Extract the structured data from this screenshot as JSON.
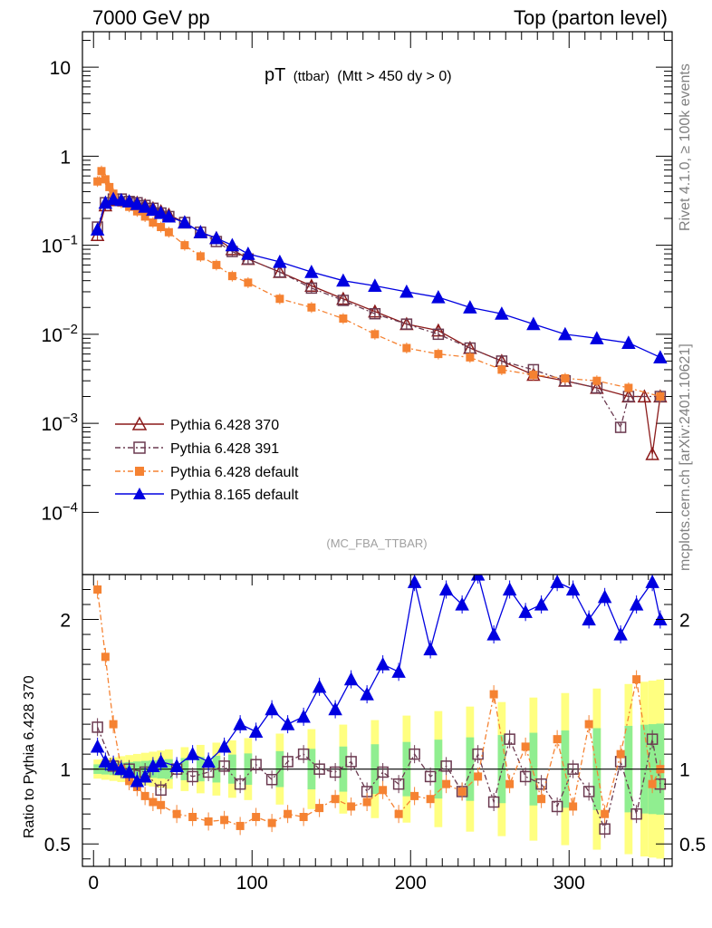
{
  "header": {
    "left": "7000 GeV pp",
    "right": "Top (parton level)"
  },
  "plot_title": {
    "main": "pT",
    "sub1": "(ttbar)",
    "sub2": "(Mtt > 450 dy > 0)"
  },
  "side_labels": {
    "rivet": "Rivet 4.1.0, ≥ 100k events",
    "mcplots": "mcplots.cern.ch [arXiv:2401.10621]"
  },
  "analysis_tag": "(MC_FBA_TTBAR)",
  "ratio_ylabel": "Ratio to Pythia 6.428 370",
  "chart_data": [
    {
      "type": "scatter",
      "panel": "main",
      "title": "pT (ttbar) (Mtt > 450 dy > 0)",
      "yscale": "log",
      "xlim": [
        -7,
        365
      ],
      "ylim": [
        2e-05,
        25
      ],
      "y_ticks": [
        {
          "value": 10,
          "label": "10"
        },
        {
          "value": 1,
          "label": "1"
        },
        {
          "value": 0.1,
          "label": "10",
          "exp": "−1"
        },
        {
          "value": 0.01,
          "label": "10",
          "exp": "−2"
        },
        {
          "value": 0.001,
          "label": "10",
          "exp": "−3"
        },
        {
          "value": 0.0001,
          "label": "10",
          "exp": "−4"
        }
      ],
      "legend_position": "bottom-left",
      "series": [
        {
          "name": "Pythia 6.428 370",
          "color": "#8b1a1a",
          "marker": "triangle-open",
          "dash": "",
          "x": [
            2.5,
            7.5,
            12.5,
            17.5,
            22.5,
            27.5,
            32.5,
            37.5,
            42.5,
            47.5,
            57.5,
            67.5,
            77.5,
            87.5,
            97.5,
            117.5,
            137.5,
            157.5,
            177.5,
            197.5,
            217.5,
            237.5,
            257.5,
            277.5,
            297.5,
            317.5,
            337.5,
            347.5,
            352.5,
            357.5
          ],
          "y": [
            0.13,
            0.28,
            0.32,
            0.32,
            0.31,
            0.3,
            0.28,
            0.26,
            0.24,
            0.22,
            0.18,
            0.14,
            0.12,
            0.09,
            0.07,
            0.05,
            0.035,
            0.025,
            0.018,
            0.013,
            0.011,
            0.007,
            0.005,
            0.0035,
            0.003,
            0.0025,
            0.002,
            0.002,
            0.00045,
            0.002
          ]
        },
        {
          "name": "Pythia 6.428 391",
          "color": "#6b3a50",
          "marker": "square-open",
          "dash": "6,3,2,3",
          "x": [
            2.5,
            7.5,
            12.5,
            17.5,
            22.5,
            27.5,
            32.5,
            37.5,
            42.5,
            47.5,
            57.5,
            67.5,
            77.5,
            87.5,
            97.5,
            117.5,
            137.5,
            157.5,
            177.5,
            197.5,
            217.5,
            237.5,
            257.5,
            277.5,
            297.5,
            317.5,
            332.5,
            337.5,
            357.5
          ],
          "y": [
            0.16,
            0.3,
            0.33,
            0.33,
            0.31,
            0.3,
            0.28,
            0.26,
            0.23,
            0.21,
            0.18,
            0.14,
            0.11,
            0.085,
            0.07,
            0.05,
            0.033,
            0.024,
            0.017,
            0.013,
            0.01,
            0.007,
            0.005,
            0.004,
            0.003,
            0.0025,
            0.0009,
            0.002,
            0.002
          ]
        },
        {
          "name": "Pythia 6.428 default",
          "color": "#f58232",
          "marker": "square",
          "dash": "6,3,2,3",
          "x": [
            2.5,
            5,
            7.5,
            10,
            12.5,
            17.5,
            22.5,
            27.5,
            32.5,
            37.5,
            42.5,
            47.5,
            57.5,
            67.5,
            77.5,
            87.5,
            97.5,
            117.5,
            137.5,
            157.5,
            177.5,
            197.5,
            217.5,
            237.5,
            257.5,
            277.5,
            297.5,
            317.5,
            337.5,
            357.5
          ],
          "y": [
            0.52,
            0.68,
            0.55,
            0.45,
            0.38,
            0.3,
            0.27,
            0.24,
            0.21,
            0.18,
            0.16,
            0.14,
            0.1,
            0.075,
            0.06,
            0.045,
            0.038,
            0.025,
            0.02,
            0.015,
            0.01,
            0.007,
            0.006,
            0.0055,
            0.004,
            0.0035,
            0.0032,
            0.003,
            0.0025,
            0.002
          ]
        },
        {
          "name": "Pythia 8.165 default",
          "color": "#0000e0",
          "marker": "triangle",
          "dash": "",
          "x": [
            2.5,
            7.5,
            12.5,
            17.5,
            22.5,
            27.5,
            32.5,
            37.5,
            42.5,
            47.5,
            57.5,
            67.5,
            77.5,
            87.5,
            97.5,
            117.5,
            137.5,
            157.5,
            177.5,
            197.5,
            217.5,
            237.5,
            257.5,
            277.5,
            297.5,
            317.5,
            337.5,
            357.5
          ],
          "y": [
            0.15,
            0.3,
            0.33,
            0.32,
            0.31,
            0.29,
            0.27,
            0.25,
            0.23,
            0.21,
            0.18,
            0.14,
            0.12,
            0.1,
            0.08,
            0.065,
            0.05,
            0.04,
            0.035,
            0.03,
            0.026,
            0.02,
            0.017,
            0.013,
            0.01,
            0.009,
            0.008,
            0.0055
          ]
        }
      ]
    },
    {
      "type": "scatter",
      "panel": "ratio",
      "ylabel": "Ratio to Pythia 6.428 370",
      "xlim": [
        -7,
        365
      ],
      "ylim": [
        0.35,
        2.3
      ],
      "x_ticks": [
        0,
        100,
        200,
        300
      ],
      "y_ticks": [
        0.5,
        1,
        2
      ],
      "band_colors": {
        "stat": "#90ee90",
        "syst": "#ffff80"
      },
      "series": [
        {
          "name": "Pythia 6.428 391",
          "color": "#6b3a50",
          "marker": "square-open",
          "dash": "6,3,2,3",
          "x": [
            2.5,
            12.5,
            22.5,
            32.5,
            42.5,
            52.5,
            62.5,
            72.5,
            82.5,
            92.5,
            102.5,
            112.5,
            122.5,
            132.5,
            142.5,
            152.5,
            162.5,
            172.5,
            182.5,
            192.5,
            202.5,
            212.5,
            222.5,
            232.5,
            242.5,
            252.5,
            262.5,
            272.5,
            282.5,
            292.5,
            302.5,
            312.5,
            322.5,
            332.5,
            342.5,
            352.5,
            357.5
          ],
          "y": [
            1.28,
            1.02,
            1.0,
            0.98,
            0.86,
            1.0,
            0.95,
            0.98,
            1.02,
            0.9,
            1.03,
            0.93,
            1.05,
            1.1,
            1.0,
            0.98,
            1.05,
            0.85,
            0.98,
            0.9,
            1.1,
            0.95,
            1.02,
            0.85,
            1.1,
            0.78,
            1.2,
            0.95,
            0.9,
            0.75,
            1.0,
            0.85,
            0.6,
            1.05,
            0.7,
            1.2,
            0.9
          ]
        },
        {
          "name": "Pythia 6.428 default",
          "color": "#f58232",
          "marker": "square",
          "dash": "6,3,2,3",
          "x": [
            2.5,
            7.5,
            12.5,
            17.5,
            22.5,
            27.5,
            32.5,
            37.5,
            42.5,
            52.5,
            62.5,
            72.5,
            82.5,
            92.5,
            102.5,
            112.5,
            122.5,
            132.5,
            142.5,
            152.5,
            162.5,
            172.5,
            182.5,
            192.5,
            202.5,
            212.5,
            222.5,
            232.5,
            242.5,
            252.5,
            262.5,
            272.5,
            282.5,
            292.5,
            302.5,
            312.5,
            322.5,
            332.5,
            342.5,
            352.5,
            357.5
          ],
          "y": [
            2.2,
            1.75,
            1.3,
            1.0,
            0.92,
            0.88,
            0.82,
            0.78,
            0.76,
            0.7,
            0.68,
            0.65,
            0.66,
            0.62,
            0.68,
            0.64,
            0.7,
            0.68,
            0.74,
            0.8,
            0.75,
            0.78,
            0.86,
            0.7,
            0.82,
            0.8,
            0.9,
            0.85,
            0.95,
            1.5,
            0.9,
            1.15,
            0.8,
            1.2,
            0.75,
            1.3,
            0.7,
            1.1,
            1.6,
            0.9,
            1.0
          ]
        },
        {
          "name": "Pythia 8.165 default",
          "color": "#0000e0",
          "marker": "triangle",
          "dash": "",
          "x": [
            2.5,
            7.5,
            12.5,
            17.5,
            22.5,
            27.5,
            32.5,
            37.5,
            42.5,
            52.5,
            62.5,
            72.5,
            82.5,
            92.5,
            102.5,
            112.5,
            122.5,
            132.5,
            142.5,
            152.5,
            162.5,
            172.5,
            182.5,
            192.5,
            202.5,
            212.5,
            222.5,
            232.5,
            242.5,
            252.5,
            262.5,
            272.5,
            282.5,
            292.5,
            302.5,
            312.5,
            322.5,
            332.5,
            342.5,
            352.5,
            357.5
          ],
          "y": [
            1.15,
            1.05,
            1.03,
            1.0,
            0.98,
            0.92,
            0.95,
            1.02,
            1.05,
            1.02,
            1.1,
            1.05,
            1.15,
            1.3,
            1.25,
            1.4,
            1.3,
            1.35,
            1.55,
            1.4,
            1.6,
            1.5,
            1.7,
            1.65,
            2.25,
            1.8,
            2.2,
            2.1,
            2.3,
            1.9,
            2.2,
            2.05,
            2.1,
            2.25,
            2.2,
            2.0,
            2.15,
            1.9,
            2.1,
            2.25,
            2.0
          ]
        }
      ]
    }
  ]
}
